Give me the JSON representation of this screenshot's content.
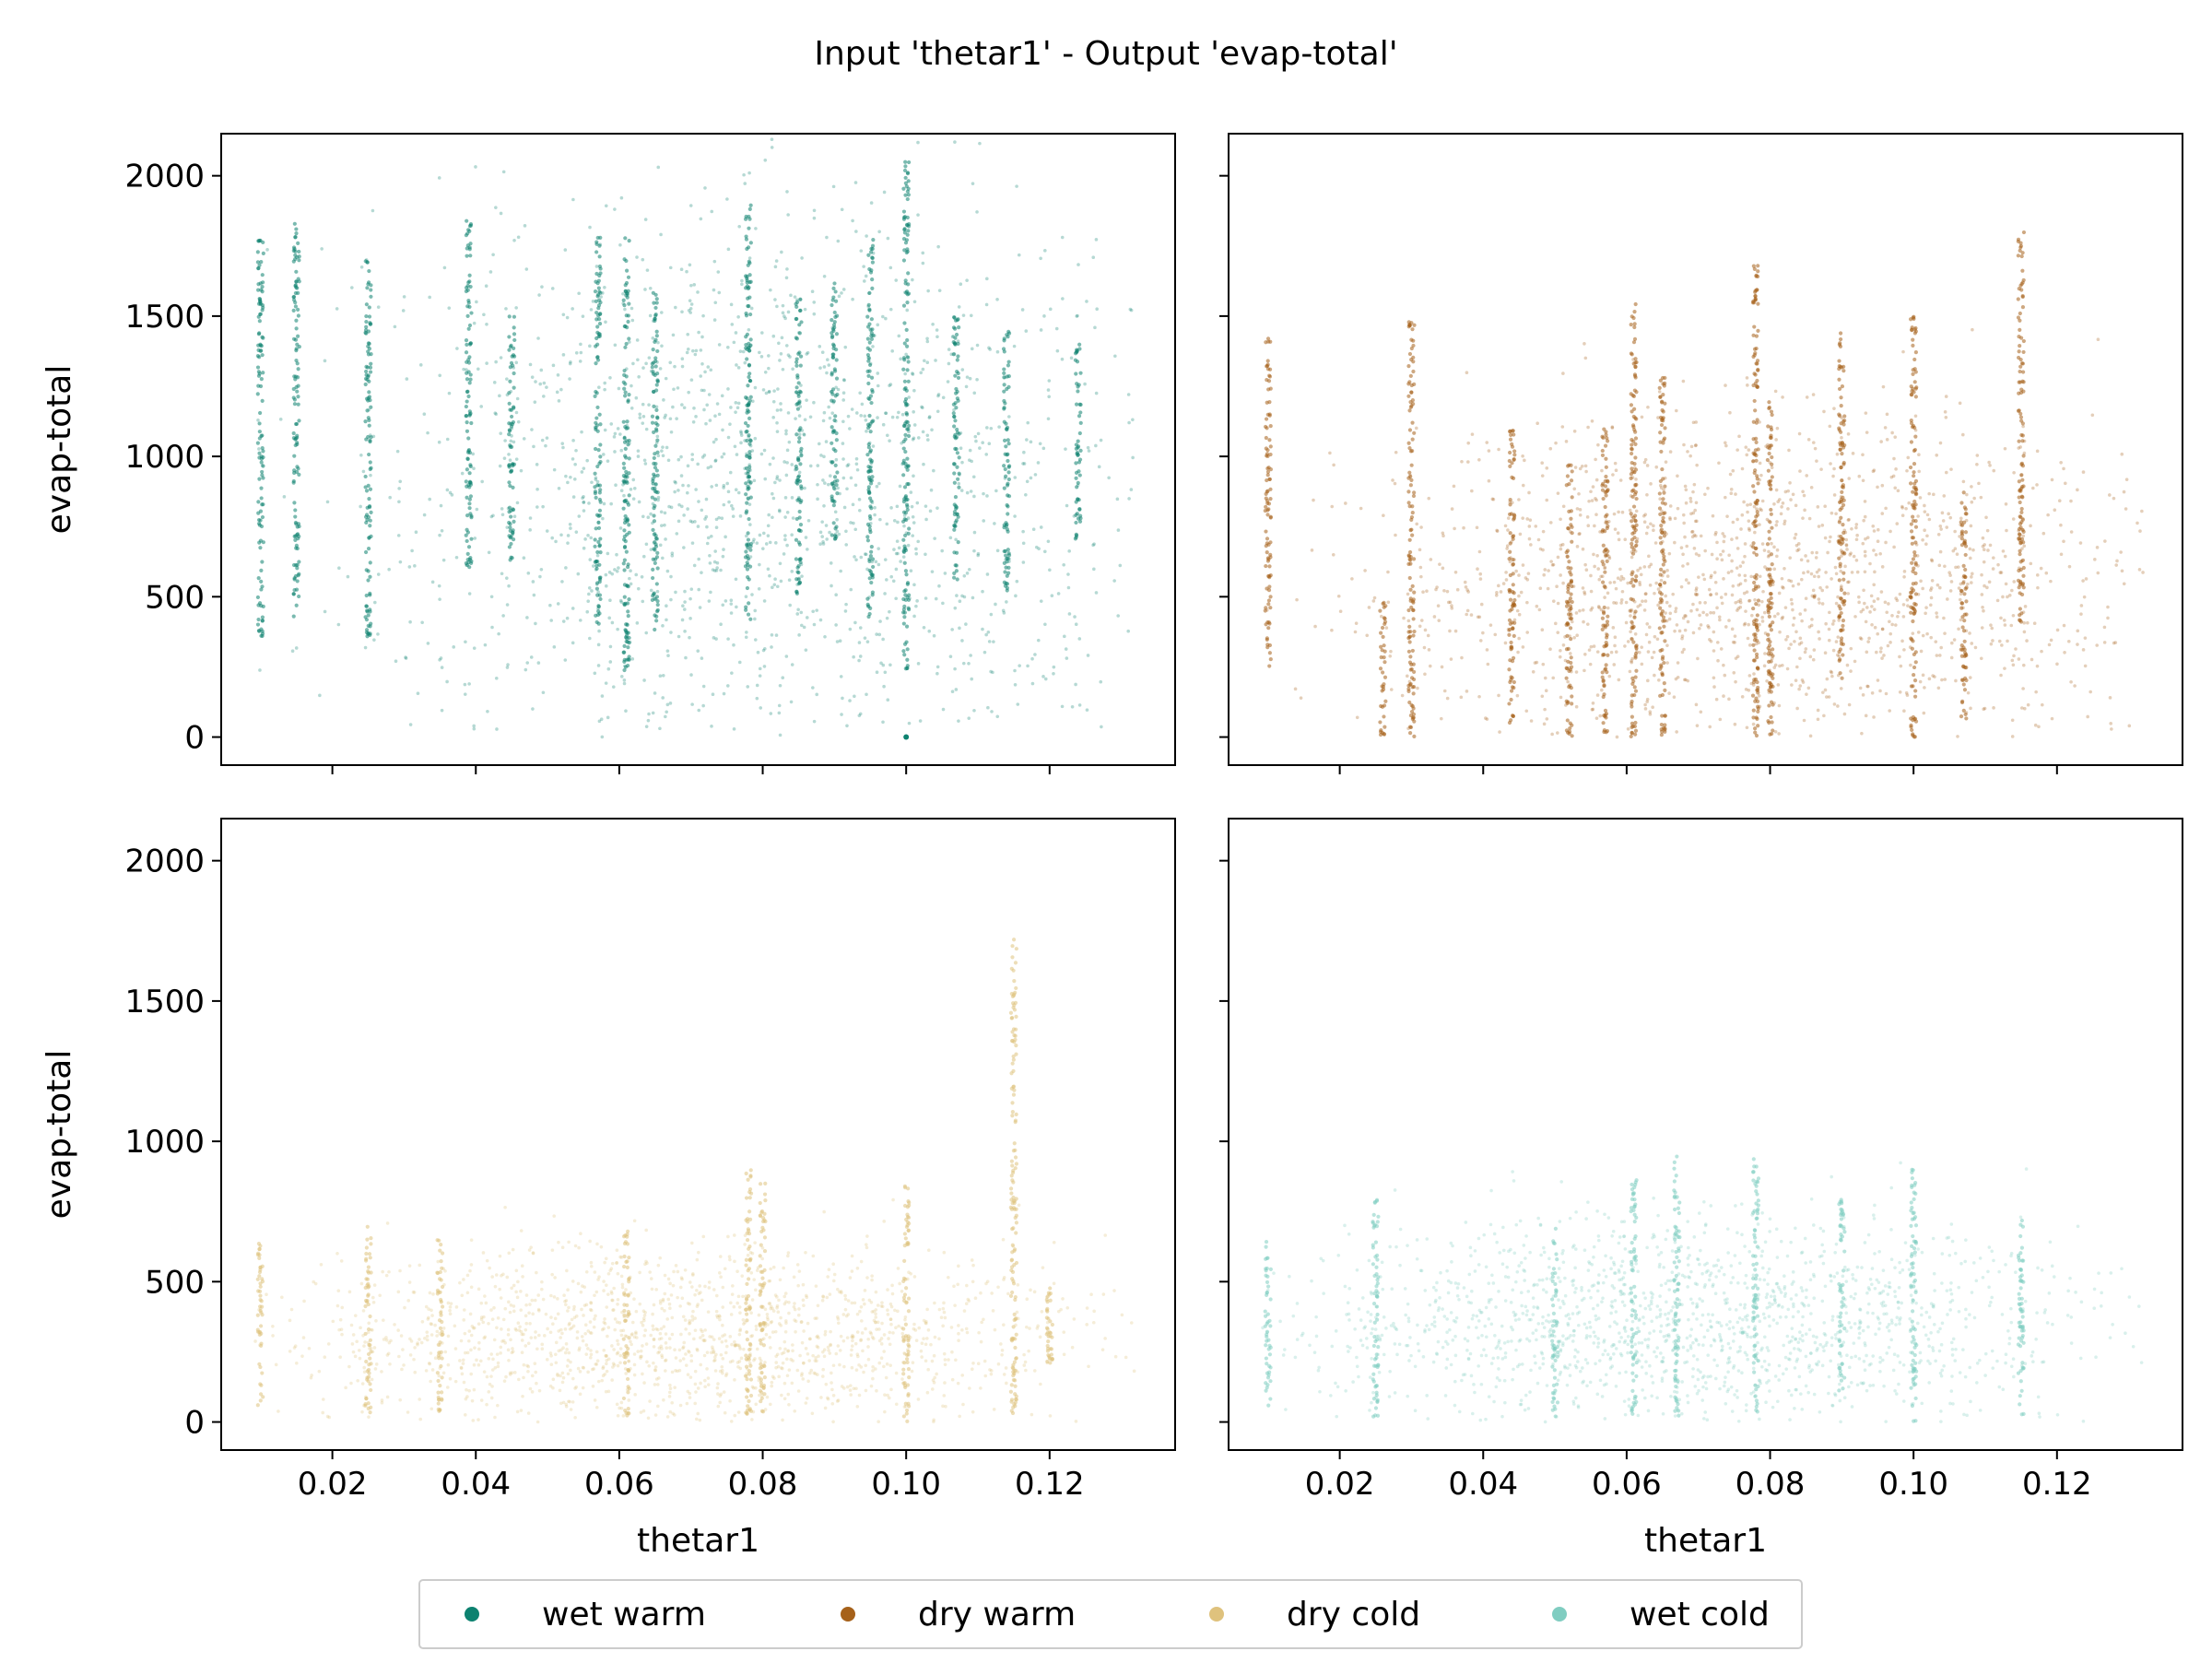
{
  "figure": {
    "title": "Input 'thetar1' - Output 'evap-total'",
    "xlabel": "thetar1",
    "ylabel": "evap-total",
    "legend": {
      "placement": "bottom-center",
      "entries": [
        {
          "label": "wet warm",
          "color": "#0d8270"
        },
        {
          "label": "dry warm",
          "color": "#a6611a"
        },
        {
          "label": "dry cold",
          "color": "#dfc27d"
        },
        {
          "label": "wet cold",
          "color": "#80cdc1"
        }
      ]
    }
  },
  "chart_data": [
    {
      "type": "scatter",
      "panel": "top-left",
      "series": [
        {
          "name": "wet warm",
          "color": "#0d8270"
        }
      ],
      "xlim": [
        0.0045,
        0.1375
      ],
      "ylim": [
        -100,
        2150
      ],
      "xticks": [
        0.02,
        0.04,
        0.06,
        0.08,
        0.1,
        0.12
      ],
      "yticks": [
        0,
        500,
        1000,
        1500,
        2000
      ],
      "xlabel": "",
      "ylabel": "evap-total",
      "grid": false,
      "stripes": [
        {
          "x": 0.01,
          "ymin": 360,
          "ymax": 1780
        },
        {
          "x": 0.015,
          "ymin": 430,
          "ymax": 1840
        },
        {
          "x": 0.025,
          "ymin": 340,
          "ymax": 1700
        },
        {
          "x": 0.039,
          "ymin": 600,
          "ymax": 1860
        },
        {
          "x": 0.045,
          "ymin": 620,
          "ymax": 1500
        },
        {
          "x": 0.057,
          "ymin": 400,
          "ymax": 1780
        },
        {
          "x": 0.061,
          "ymin": 220,
          "ymax": 1800
        },
        {
          "x": 0.065,
          "ymin": 350,
          "ymax": 1600
        },
        {
          "x": 0.078,
          "ymin": 380,
          "ymax": 1900
        },
        {
          "x": 0.085,
          "ymin": 500,
          "ymax": 1560
        },
        {
          "x": 0.09,
          "ymin": 700,
          "ymax": 1650
        },
        {
          "x": 0.095,
          "ymin": 400,
          "ymax": 1780
        },
        {
          "x": 0.1,
          "ymin": 230,
          "ymax": 2050
        },
        {
          "x": 0.107,
          "ymin": 550,
          "ymax": 1500
        },
        {
          "x": 0.114,
          "ymin": 500,
          "ymax": 1450
        },
        {
          "x": 0.124,
          "ymin": 700,
          "ymax": 1400
        }
      ],
      "cloud_center": [
        0.08,
        900
      ],
      "outlier_points": [
        {
          "x": 0.1,
          "y": 0
        }
      ]
    },
    {
      "type": "scatter",
      "panel": "top-right",
      "series": [
        {
          "name": "dry warm",
          "color": "#a6611a"
        }
      ],
      "xlim": [
        0.0045,
        0.1375
      ],
      "ylim": [
        -100,
        2150
      ],
      "xticks": [
        0.02,
        0.04,
        0.06,
        0.08,
        0.1,
        0.12
      ],
      "yticks": [
        0,
        500,
        1000,
        1500,
        2000
      ],
      "xlabel": "",
      "ylabel": "",
      "grid": false,
      "stripes": [
        {
          "x": 0.01,
          "ymin": 250,
          "ymax": 1430
        },
        {
          "x": 0.026,
          "ymin": 0,
          "ymax": 480
        },
        {
          "x": 0.03,
          "ymin": 0,
          "ymax": 1500
        },
        {
          "x": 0.044,
          "ymin": 50,
          "ymax": 1100
        },
        {
          "x": 0.052,
          "ymin": 0,
          "ymax": 1000
        },
        {
          "x": 0.057,
          "ymin": 0,
          "ymax": 1100
        },
        {
          "x": 0.061,
          "ymin": 0,
          "ymax": 1550
        },
        {
          "x": 0.065,
          "ymin": 0,
          "ymax": 1300
        },
        {
          "x": 0.078,
          "ymin": 0,
          "ymax": 1680
        },
        {
          "x": 0.08,
          "ymin": 0,
          "ymax": 1200
        },
        {
          "x": 0.09,
          "ymin": 200,
          "ymax": 1450
        },
        {
          "x": 0.1,
          "ymin": 0,
          "ymax": 1500
        },
        {
          "x": 0.107,
          "ymin": 50,
          "ymax": 880
        },
        {
          "x": 0.115,
          "ymin": 400,
          "ymax": 1800
        }
      ],
      "cloud_center": [
        0.08,
        550
      ]
    },
    {
      "type": "scatter",
      "panel": "bottom-left",
      "series": [
        {
          "name": "dry cold",
          "color": "#dfc27d"
        }
      ],
      "xlim": [
        0.0045,
        0.1375
      ],
      "ylim": [
        -100,
        2150
      ],
      "xticks": [
        0.02,
        0.04,
        0.06,
        0.08,
        0.1,
        0.12
      ],
      "yticks": [
        0,
        500,
        1000,
        1500,
        2000
      ],
      "xlabel": "thetar1",
      "ylabel": "evap-total",
      "grid": false,
      "stripes": [
        {
          "x": 0.01,
          "ymin": 60,
          "ymax": 640
        },
        {
          "x": 0.025,
          "ymin": 20,
          "ymax": 700
        },
        {
          "x": 0.035,
          "ymin": 30,
          "ymax": 650
        },
        {
          "x": 0.061,
          "ymin": 20,
          "ymax": 700
        },
        {
          "x": 0.078,
          "ymin": 20,
          "ymax": 900
        },
        {
          "x": 0.08,
          "ymin": 20,
          "ymax": 850
        },
        {
          "x": 0.1,
          "ymin": 0,
          "ymax": 850
        },
        {
          "x": 0.115,
          "ymin": 20,
          "ymax": 1720
        },
        {
          "x": 0.12,
          "ymin": 200,
          "ymax": 500
        }
      ],
      "cloud_center": [
        0.07,
        300
      ]
    },
    {
      "type": "scatter",
      "panel": "bottom-right",
      "series": [
        {
          "name": "wet cold",
          "color": "#80cdc1"
        }
      ],
      "xlim": [
        0.0045,
        0.1375
      ],
      "ylim": [
        -100,
        2150
      ],
      "xticks": [
        0.02,
        0.04,
        0.06,
        0.08,
        0.1,
        0.12
      ],
      "yticks": [
        0,
        500,
        1000,
        1500,
        2000
      ],
      "xlabel": "thetar1",
      "ylabel": "",
      "grid": false,
      "stripes": [
        {
          "x": 0.01,
          "ymin": 50,
          "ymax": 650
        },
        {
          "x": 0.025,
          "ymin": 0,
          "ymax": 800
        },
        {
          "x": 0.05,
          "ymin": 20,
          "ymax": 700
        },
        {
          "x": 0.061,
          "ymin": 20,
          "ymax": 900
        },
        {
          "x": 0.067,
          "ymin": 20,
          "ymax": 950
        },
        {
          "x": 0.078,
          "ymin": 20,
          "ymax": 950
        },
        {
          "x": 0.09,
          "ymin": 100,
          "ymax": 800
        },
        {
          "x": 0.1,
          "ymin": 0,
          "ymax": 920
        },
        {
          "x": 0.115,
          "ymin": 20,
          "ymax": 750
        }
      ],
      "cloud_center": [
        0.07,
        350
      ]
    }
  ]
}
